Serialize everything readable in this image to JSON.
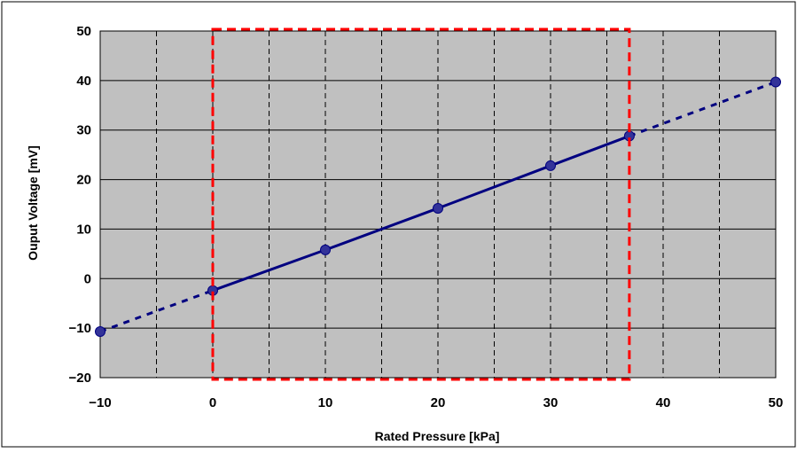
{
  "chart_data": {
    "type": "line",
    "title": "",
    "xlabel": "Rated Pressure [kPa]",
    "ylabel": "Ouput Voltage [mV]",
    "xlim": [
      -10,
      50
    ],
    "ylim": [
      -20,
      50
    ],
    "x_ticks": [
      -10,
      0,
      10,
      20,
      30,
      40,
      50
    ],
    "y_ticks": [
      -20,
      -10,
      0,
      10,
      20,
      30,
      40,
      50
    ],
    "x_minor_gridlines": [
      -5,
      5,
      15,
      25,
      35,
      45
    ],
    "grid": true,
    "legend": "none",
    "series": [
      {
        "points": [
          {
            "x": -10,
            "y": -10.7
          },
          {
            "x": 0,
            "y": -2.4
          },
          {
            "x": 10,
            "y": 5.8
          },
          {
            "x": 20,
            "y": 14.2
          },
          {
            "x": 30,
            "y": 22.8
          },
          {
            "x": 37,
            "y": 28.8
          },
          {
            "x": 50,
            "y": 39.7
          }
        ],
        "solid_range": [
          0,
          37
        ],
        "dashed_outside_range": true
      }
    ],
    "highlight_region": {
      "x": [
        0,
        37
      ],
      "y": [
        -20,
        50
      ],
      "style": "dashed",
      "color": "#ff0000"
    },
    "colors": {
      "plot_background": "#c0c0c0",
      "series": "#000080",
      "marker_fill": "#333399",
      "highlight": "#ff0000",
      "gridline": "#000000"
    }
  }
}
